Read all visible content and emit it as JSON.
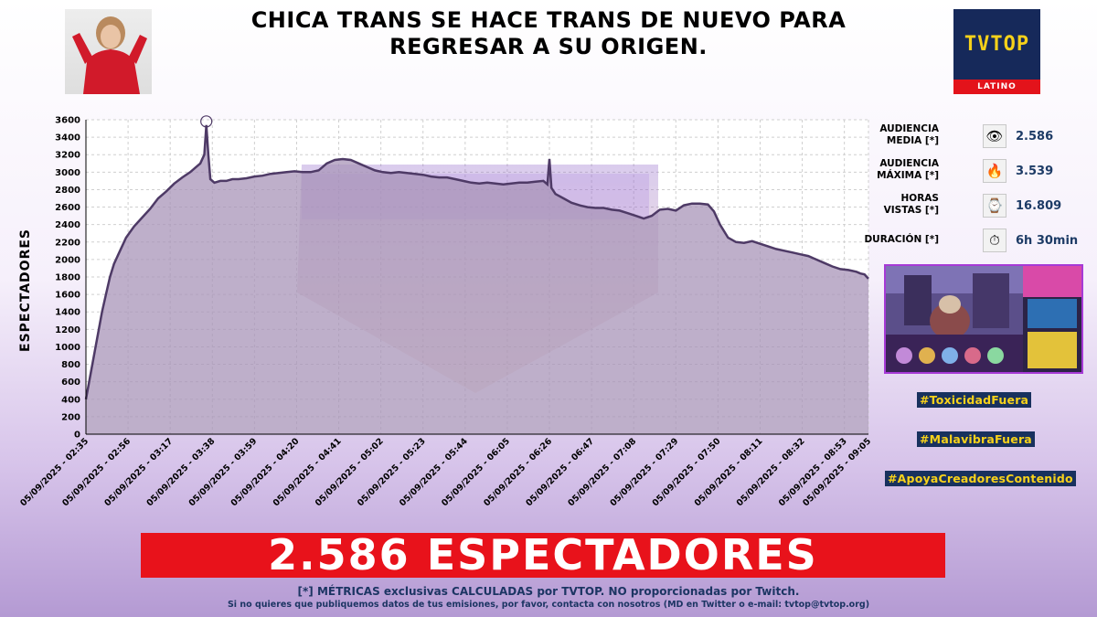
{
  "header": {
    "title_line1": "CHICA TRANS SE HACE TRANS DE NUEVO PARA",
    "title_line2": "REGRESAR A SU ORIGEN.",
    "logo_text": "TVTOP",
    "logo_sub": "LATINO"
  },
  "stats": [
    {
      "label_line1": "AUDIENCIA",
      "label_line2": "MEDIA [*]",
      "icon": "eye-icon",
      "glyph": "👁",
      "value": "2.586"
    },
    {
      "label_line1": "AUDIENCIA",
      "label_line2": "MÁXIMA [*]",
      "icon": "fire-icon",
      "glyph": "🔥",
      "value": "3.539"
    },
    {
      "label_line1": "HORAS",
      "label_line2": "VISTAS [*]",
      "icon": "watch-icon",
      "glyph": "⌚",
      "value": "16.809"
    },
    {
      "label_line1": "DURACIÓN [*]",
      "label_line2": "",
      "icon": "stopwatch-icon",
      "glyph": "⏱",
      "value": "6h 30min"
    }
  ],
  "hashtags": [
    "#ToxicidadFuera",
    "#MalavibraFuera",
    "#ApoyaCreadoresContenido"
  ],
  "banner": "2.586 ESPECTADORES",
  "footer": {
    "line1": "[*] MÉTRICAS exclusivas CALCULADAS por TVTOP. NO proporcionadas por Twitch.",
    "line2": "Si no quieres que publiquemos datos de tus emisiones, por favor, contacta con nosotros (MD en Twitter o e-mail: tvtop@tvtop.org)"
  },
  "colors": {
    "line": "#4e3a66",
    "area": "#a894b8",
    "banner": "#e8121b",
    "hashtag_bg": "#18315e",
    "hashtag_fg": "#f8d21a",
    "watermark": "#8e63c9"
  },
  "chart_data": {
    "type": "area",
    "ylabel": "ESPECTADORES",
    "ylim": [
      0,
      3600
    ],
    "yticks": [
      0,
      200,
      400,
      600,
      800,
      1000,
      1200,
      1400,
      1600,
      1800,
      2000,
      2200,
      2400,
      2600,
      2800,
      3000,
      3200,
      3400,
      3600
    ],
    "xlim_minutes": [
      0,
      390
    ],
    "xticks": [
      {
        "t": 0,
        "label": "05/09/2025 - 02:35"
      },
      {
        "t": 21,
        "label": "05/09/2025 - 02:56"
      },
      {
        "t": 42,
        "label": "05/09/2025 - 03:17"
      },
      {
        "t": 63,
        "label": "05/09/2025 - 03:38"
      },
      {
        "t": 84,
        "label": "05/09/2025 - 03:59"
      },
      {
        "t": 105,
        "label": "05/09/2025 - 04:20"
      },
      {
        "t": 126,
        "label": "05/09/2025 - 04:41"
      },
      {
        "t": 147,
        "label": "05/09/2025 - 05:02"
      },
      {
        "t": 168,
        "label": "05/09/2025 - 05:23"
      },
      {
        "t": 189,
        "label": "05/09/2025 - 05:44"
      },
      {
        "t": 210,
        "label": "05/09/2025 - 06:05"
      },
      {
        "t": 231,
        "label": "05/09/2025 - 06:26"
      },
      {
        "t": 252,
        "label": "05/09/2025 - 06:47"
      },
      {
        "t": 273,
        "label": "05/09/2025 - 07:08"
      },
      {
        "t": 294,
        "label": "05/09/2025 - 07:29"
      },
      {
        "t": 315,
        "label": "05/09/2025 - 07:50"
      },
      {
        "t": 336,
        "label": "05/09/2025 - 08:11"
      },
      {
        "t": 357,
        "label": "05/09/2025 - 08:32"
      },
      {
        "t": 378,
        "label": "05/09/2025 - 08:53"
      },
      {
        "t": 390,
        "label": "05/09/2025 - 09:05"
      }
    ],
    "peak": {
      "t": 60,
      "value": 3539
    },
    "points": [
      [
        0,
        400
      ],
      [
        2,
        650
      ],
      [
        4,
        900
      ],
      [
        6,
        1150
      ],
      [
        8,
        1400
      ],
      [
        10,
        1600
      ],
      [
        12,
        1800
      ],
      [
        14,
        1950
      ],
      [
        17,
        2100
      ],
      [
        20,
        2250
      ],
      [
        24,
        2380
      ],
      [
        28,
        2480
      ],
      [
        32,
        2580
      ],
      [
        36,
        2700
      ],
      [
        40,
        2780
      ],
      [
        44,
        2870
      ],
      [
        48,
        2940
      ],
      [
        52,
        3000
      ],
      [
        55,
        3060
      ],
      [
        57,
        3100
      ],
      [
        59,
        3200
      ],
      [
        60,
        3539
      ],
      [
        61,
        3200
      ],
      [
        62,
        2920
      ],
      [
        64,
        2880
      ],
      [
        67,
        2900
      ],
      [
        70,
        2900
      ],
      [
        73,
        2920
      ],
      [
        76,
        2920
      ],
      [
        80,
        2930
      ],
      [
        84,
        2950
      ],
      [
        88,
        2960
      ],
      [
        92,
        2980
      ],
      [
        96,
        2990
      ],
      [
        100,
        3000
      ],
      [
        104,
        3010
      ],
      [
        108,
        3000
      ],
      [
        112,
        3000
      ],
      [
        116,
        3020
      ],
      [
        120,
        3100
      ],
      [
        124,
        3140
      ],
      [
        128,
        3150
      ],
      [
        132,
        3140
      ],
      [
        136,
        3100
      ],
      [
        140,
        3060
      ],
      [
        144,
        3020
      ],
      [
        148,
        3000
      ],
      [
        152,
        2990
      ],
      [
        156,
        3000
      ],
      [
        160,
        2990
      ],
      [
        164,
        2980
      ],
      [
        168,
        2970
      ],
      [
        172,
        2950
      ],
      [
        176,
        2940
      ],
      [
        180,
        2940
      ],
      [
        184,
        2920
      ],
      [
        188,
        2900
      ],
      [
        192,
        2880
      ],
      [
        196,
        2870
      ],
      [
        200,
        2880
      ],
      [
        204,
        2870
      ],
      [
        208,
        2860
      ],
      [
        212,
        2870
      ],
      [
        216,
        2880
      ],
      [
        220,
        2880
      ],
      [
        224,
        2890
      ],
      [
        228,
        2900
      ],
      [
        230,
        2860
      ],
      [
        231,
        3150
      ],
      [
        232,
        2820
      ],
      [
        234,
        2750
      ],
      [
        238,
        2700
      ],
      [
        242,
        2650
      ],
      [
        246,
        2620
      ],
      [
        250,
        2600
      ],
      [
        254,
        2590
      ],
      [
        258,
        2590
      ],
      [
        262,
        2570
      ],
      [
        266,
        2560
      ],
      [
        270,
        2530
      ],
      [
        274,
        2500
      ],
      [
        278,
        2470
      ],
      [
        282,
        2500
      ],
      [
        286,
        2570
      ],
      [
        290,
        2580
      ],
      [
        294,
        2560
      ],
      [
        298,
        2620
      ],
      [
        302,
        2640
      ],
      [
        306,
        2640
      ],
      [
        310,
        2630
      ],
      [
        313,
        2550
      ],
      [
        316,
        2400
      ],
      [
        320,
        2250
      ],
      [
        324,
        2200
      ],
      [
        328,
        2190
      ],
      [
        332,
        2210
      ],
      [
        336,
        2180
      ],
      [
        340,
        2150
      ],
      [
        344,
        2120
      ],
      [
        348,
        2100
      ],
      [
        352,
        2080
      ],
      [
        356,
        2060
      ],
      [
        360,
        2040
      ],
      [
        364,
        2000
      ],
      [
        368,
        1960
      ],
      [
        372,
        1920
      ],
      [
        376,
        1890
      ],
      [
        380,
        1880
      ],
      [
        384,
        1860
      ],
      [
        386,
        1840
      ],
      [
        388,
        1830
      ],
      [
        390,
        1780
      ]
    ]
  }
}
